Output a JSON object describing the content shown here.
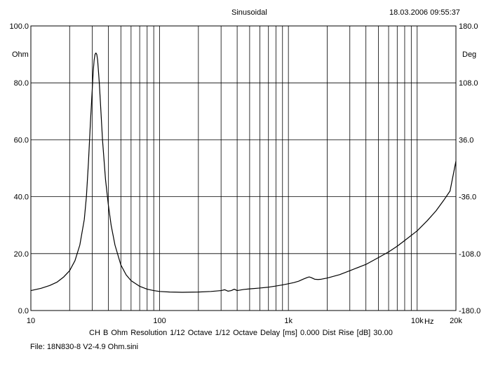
{
  "header": {
    "title": "Sinusoidal",
    "timestamp": "18.03.2006 09:55:37"
  },
  "footer": {
    "settings": "CH B   Ohm   Resolution 1/12 Octave   1/12 Octave   Delay [ms] 0.000   Dist Rise [dB] 30.00",
    "file": "File: 18N830-8 V2-4.9 Ohm.sini"
  },
  "chart_data": {
    "type": "line",
    "x_scale": "log",
    "xlim": [
      10,
      20000
    ],
    "ylim": [
      0,
      100
    ],
    "y2lim": [
      -180,
      180
    ],
    "grid": true,
    "ylabel": "Ohm",
    "y2label": "Deg",
    "xunit": "Hz",
    "x_ticks": [
      {
        "value": 10,
        "label": "10"
      },
      {
        "value": 100,
        "label": "100"
      },
      {
        "value": 1000,
        "label": "1k"
      },
      {
        "value": 10000,
        "label": "10k"
      },
      {
        "value": 20000,
        "label": "20k"
      }
    ],
    "y_ticks": [
      {
        "value": 0,
        "label": "0.0"
      },
      {
        "value": 20,
        "label": "20.0"
      },
      {
        "value": 40,
        "label": "40.0"
      },
      {
        "value": 60,
        "label": "60.0"
      },
      {
        "value": 80,
        "label": "80.0"
      },
      {
        "value": 100,
        "label": "100.0"
      }
    ],
    "y2_ticks": [
      {
        "value": -180,
        "label": "-180.0"
      },
      {
        "value": -108,
        "label": "-108.0"
      },
      {
        "value": -36,
        "label": "-36.0"
      },
      {
        "value": 36,
        "label": "36.0"
      },
      {
        "value": 108,
        "label": "108.0"
      },
      {
        "value": 180,
        "label": "180.0"
      }
    ],
    "series": [
      {
        "color": "#000000",
        "points": [
          [
            10,
            7.0
          ],
          [
            12,
            7.8
          ],
          [
            14,
            8.8
          ],
          [
            16,
            10.0
          ],
          [
            18,
            11.8
          ],
          [
            20,
            14.0
          ],
          [
            22,
            17.5
          ],
          [
            24,
            23.0
          ],
          [
            26,
            32.0
          ],
          [
            27,
            40.0
          ],
          [
            28,
            52.0
          ],
          [
            29,
            66.0
          ],
          [
            30,
            78.0
          ],
          [
            30.5,
            84.0
          ],
          [
            31,
            88.0
          ],
          [
            31.5,
            90.0
          ],
          [
            32,
            90.5
          ],
          [
            32.5,
            90.0
          ],
          [
            33,
            88.0
          ],
          [
            34,
            80.0
          ],
          [
            35,
            70.0
          ],
          [
            36,
            60.0
          ],
          [
            38,
            46.0
          ],
          [
            40,
            37.0
          ],
          [
            42,
            30.0
          ],
          [
            45,
            23.0
          ],
          [
            50,
            16.0
          ],
          [
            55,
            12.5
          ],
          [
            60,
            10.5
          ],
          [
            70,
            8.5
          ],
          [
            80,
            7.5
          ],
          [
            90,
            7.0
          ],
          [
            100,
            6.7
          ],
          [
            120,
            6.5
          ],
          [
            150,
            6.4
          ],
          [
            200,
            6.5
          ],
          [
            250,
            6.7
          ],
          [
            300,
            7.0
          ],
          [
            320,
            7.3
          ],
          [
            340,
            6.8
          ],
          [
            360,
            7.0
          ],
          [
            380,
            7.5
          ],
          [
            400,
            7.0
          ],
          [
            450,
            7.4
          ],
          [
            500,
            7.6
          ],
          [
            600,
            7.9
          ],
          [
            700,
            8.2
          ],
          [
            800,
            8.6
          ],
          [
            900,
            9.0
          ],
          [
            1000,
            9.4
          ],
          [
            1100,
            9.8
          ],
          [
            1200,
            10.3
          ],
          [
            1300,
            11.0
          ],
          [
            1400,
            11.6
          ],
          [
            1450,
            11.8
          ],
          [
            1500,
            11.6
          ],
          [
            1600,
            11.0
          ],
          [
            1700,
            10.9
          ],
          [
            1800,
            11.0
          ],
          [
            2000,
            11.4
          ],
          [
            2500,
            12.6
          ],
          [
            3000,
            14.0
          ],
          [
            4000,
            16.2
          ],
          [
            5000,
            18.6
          ],
          [
            6000,
            20.6
          ],
          [
            7000,
            22.6
          ],
          [
            8000,
            24.6
          ],
          [
            10000,
            28.0
          ],
          [
            12000,
            31.6
          ],
          [
            14000,
            35.0
          ],
          [
            16000,
            38.6
          ],
          [
            18000,
            42.0
          ],
          [
            20000,
            52.5
          ]
        ]
      }
    ]
  }
}
